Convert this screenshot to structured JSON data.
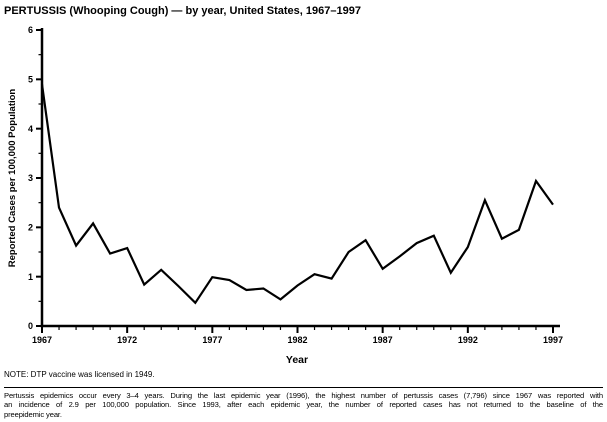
{
  "title": "PERTUSSIS (Whooping Cough) — by year, United States, 1967–1997",
  "chart_data": {
    "type": "line",
    "title": "PERTUSSIS (Whooping Cough) — by year, United States, 1967–1997",
    "xlabel": "Year",
    "ylabel": "Reported Cases per 100,000 Population",
    "x": [
      1967,
      1968,
      1969,
      1970,
      1971,
      1972,
      1973,
      1974,
      1975,
      1976,
      1977,
      1978,
      1979,
      1980,
      1981,
      1982,
      1983,
      1984,
      1985,
      1986,
      1987,
      1988,
      1989,
      1990,
      1991,
      1992,
      1993,
      1994,
      1995,
      1996,
      1997
    ],
    "values": [
      4.9,
      2.4,
      1.63,
      2.08,
      1.47,
      1.58,
      0.84,
      1.14,
      0.81,
      0.47,
      0.99,
      0.93,
      0.73,
      0.76,
      0.54,
      0.82,
      1.05,
      0.96,
      1.5,
      1.74,
      1.16,
      1.41,
      1.68,
      1.83,
      1.08,
      1.6,
      2.55,
      1.77,
      1.95,
      2.94,
      2.46
    ],
    "ylim": [
      0,
      6
    ],
    "yticks_major": [
      0,
      1,
      2,
      3,
      4,
      5,
      6
    ],
    "y_minor_step": 0.5,
    "xticks_major": [
      1967,
      1972,
      1977,
      1982,
      1987,
      1992,
      1997
    ],
    "x_minor_step": 1,
    "grid": false,
    "legend": "none",
    "line_color": "#000000",
    "axis_color": "#000000",
    "background_color": "#ffffff"
  },
  "note": "NOTE: DTP vaccine was licensed in 1949.",
  "footnote_lines": [
    "Pertussis epidemics occur every 3–4 years. During the last epidemic year (1996), the highest number of pertussis cases (7,796) since 1967 was reported with",
    "an incidence of 2.9 per 100,000 population. Since 1993, after each epidemic year, the number of reported cases has not returned to the baseline of the",
    "preepidemic year."
  ]
}
